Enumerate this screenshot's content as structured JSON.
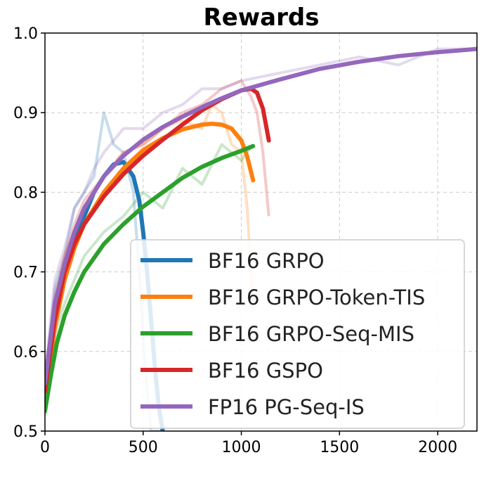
{
  "chart_data": {
    "type": "line",
    "title": "Rewards",
    "xlabel": "",
    "ylabel": "",
    "xlim": [
      0,
      2200
    ],
    "ylim": [
      0.5,
      1.0
    ],
    "xticks": [
      0,
      500,
      1000,
      1500,
      2000
    ],
    "yticks": [
      0.5,
      0.6,
      0.7,
      0.8,
      0.9,
      1.0
    ],
    "ytick_labels": [
      "0.5",
      "0.6",
      "0.7",
      "0.8",
      "0.9",
      "1.0"
    ],
    "grid": true,
    "legend_position": "lower-right",
    "series": [
      {
        "name": "BF16 GRPO",
        "color": "#1f77b4",
        "x": [
          0,
          50,
          100,
          150,
          200,
          250,
          300,
          350,
          400,
          450,
          480,
          500,
          520,
          540,
          560,
          580,
          600
        ],
        "y": [
          0.55,
          0.64,
          0.7,
          0.74,
          0.77,
          0.8,
          0.82,
          0.835,
          0.838,
          0.82,
          0.79,
          0.75,
          0.7,
          0.64,
          0.58,
          0.53,
          0.5
        ],
        "raw_y": [
          0.56,
          0.68,
          0.72,
          0.78,
          0.8,
          0.82,
          0.9,
          0.86,
          0.85,
          0.8,
          0.7,
          0.62,
          0.55,
          0.5,
          0.5,
          0.5,
          0.5
        ]
      },
      {
        "name": "BF16 GRPO-Token-TIS",
        "color": "#ff7f0e",
        "x": [
          0,
          50,
          100,
          150,
          200,
          300,
          400,
          500,
          600,
          700,
          800,
          850,
          900,
          950,
          1000,
          1030,
          1060
        ],
        "y": [
          0.54,
          0.63,
          0.69,
          0.73,
          0.76,
          0.8,
          0.83,
          0.853,
          0.868,
          0.879,
          0.885,
          0.886,
          0.885,
          0.88,
          0.865,
          0.845,
          0.815
        ],
        "raw_y": [
          0.55,
          0.66,
          0.72,
          0.75,
          0.78,
          0.82,
          0.85,
          0.86,
          0.88,
          0.89,
          0.88,
          0.91,
          0.9,
          0.86,
          0.85,
          0.78,
          0.65
        ]
      },
      {
        "name": "BF16 GRPO-Seq-MIS",
        "color": "#2ca02c",
        "x": [
          0,
          30,
          60,
          100,
          150,
          200,
          300,
          400,
          500,
          600,
          700,
          800,
          900,
          1000,
          1060
        ],
        "y": [
          0.525,
          0.57,
          0.61,
          0.645,
          0.675,
          0.7,
          0.735,
          0.76,
          0.782,
          0.8,
          0.818,
          0.832,
          0.843,
          0.852,
          0.858
        ],
        "raw_y": [
          0.52,
          0.58,
          0.63,
          0.66,
          0.69,
          0.72,
          0.75,
          0.77,
          0.8,
          0.78,
          0.83,
          0.81,
          0.86,
          0.84,
          0.86
        ]
      },
      {
        "name": "BF16 GSPO",
        "color": "#d62728",
        "x": [
          0,
          50,
          100,
          150,
          200,
          300,
          400,
          500,
          600,
          700,
          800,
          900,
          1000,
          1050,
          1080,
          1110,
          1140
        ],
        "y": [
          0.55,
          0.64,
          0.7,
          0.735,
          0.76,
          0.795,
          0.823,
          0.846,
          0.866,
          0.885,
          0.903,
          0.917,
          0.928,
          0.93,
          0.925,
          0.905,
          0.865
        ],
        "raw_y": [
          0.56,
          0.67,
          0.72,
          0.76,
          0.79,
          0.82,
          0.85,
          0.86,
          0.88,
          0.9,
          0.91,
          0.93,
          0.94,
          0.92,
          0.9,
          0.85,
          0.77
        ]
      },
      {
        "name": "FP16 PG-Seq-IS",
        "color": "#9467bd",
        "x": [
          0,
          50,
          100,
          150,
          200,
          250,
          300,
          400,
          500,
          600,
          700,
          800,
          900,
          1000,
          1200,
          1400,
          1600,
          1800,
          2000,
          2200
        ],
        "y": [
          0.56,
          0.66,
          0.71,
          0.75,
          0.78,
          0.8,
          0.82,
          0.846,
          0.866,
          0.882,
          0.895,
          0.907,
          0.918,
          0.928,
          0.942,
          0.955,
          0.964,
          0.971,
          0.976,
          0.98
        ],
        "raw_y": [
          0.57,
          0.69,
          0.73,
          0.78,
          0.8,
          0.83,
          0.85,
          0.88,
          0.88,
          0.9,
          0.91,
          0.93,
          0.93,
          0.94,
          0.95,
          0.96,
          0.97,
          0.96,
          0.98,
          0.98
        ]
      }
    ]
  }
}
